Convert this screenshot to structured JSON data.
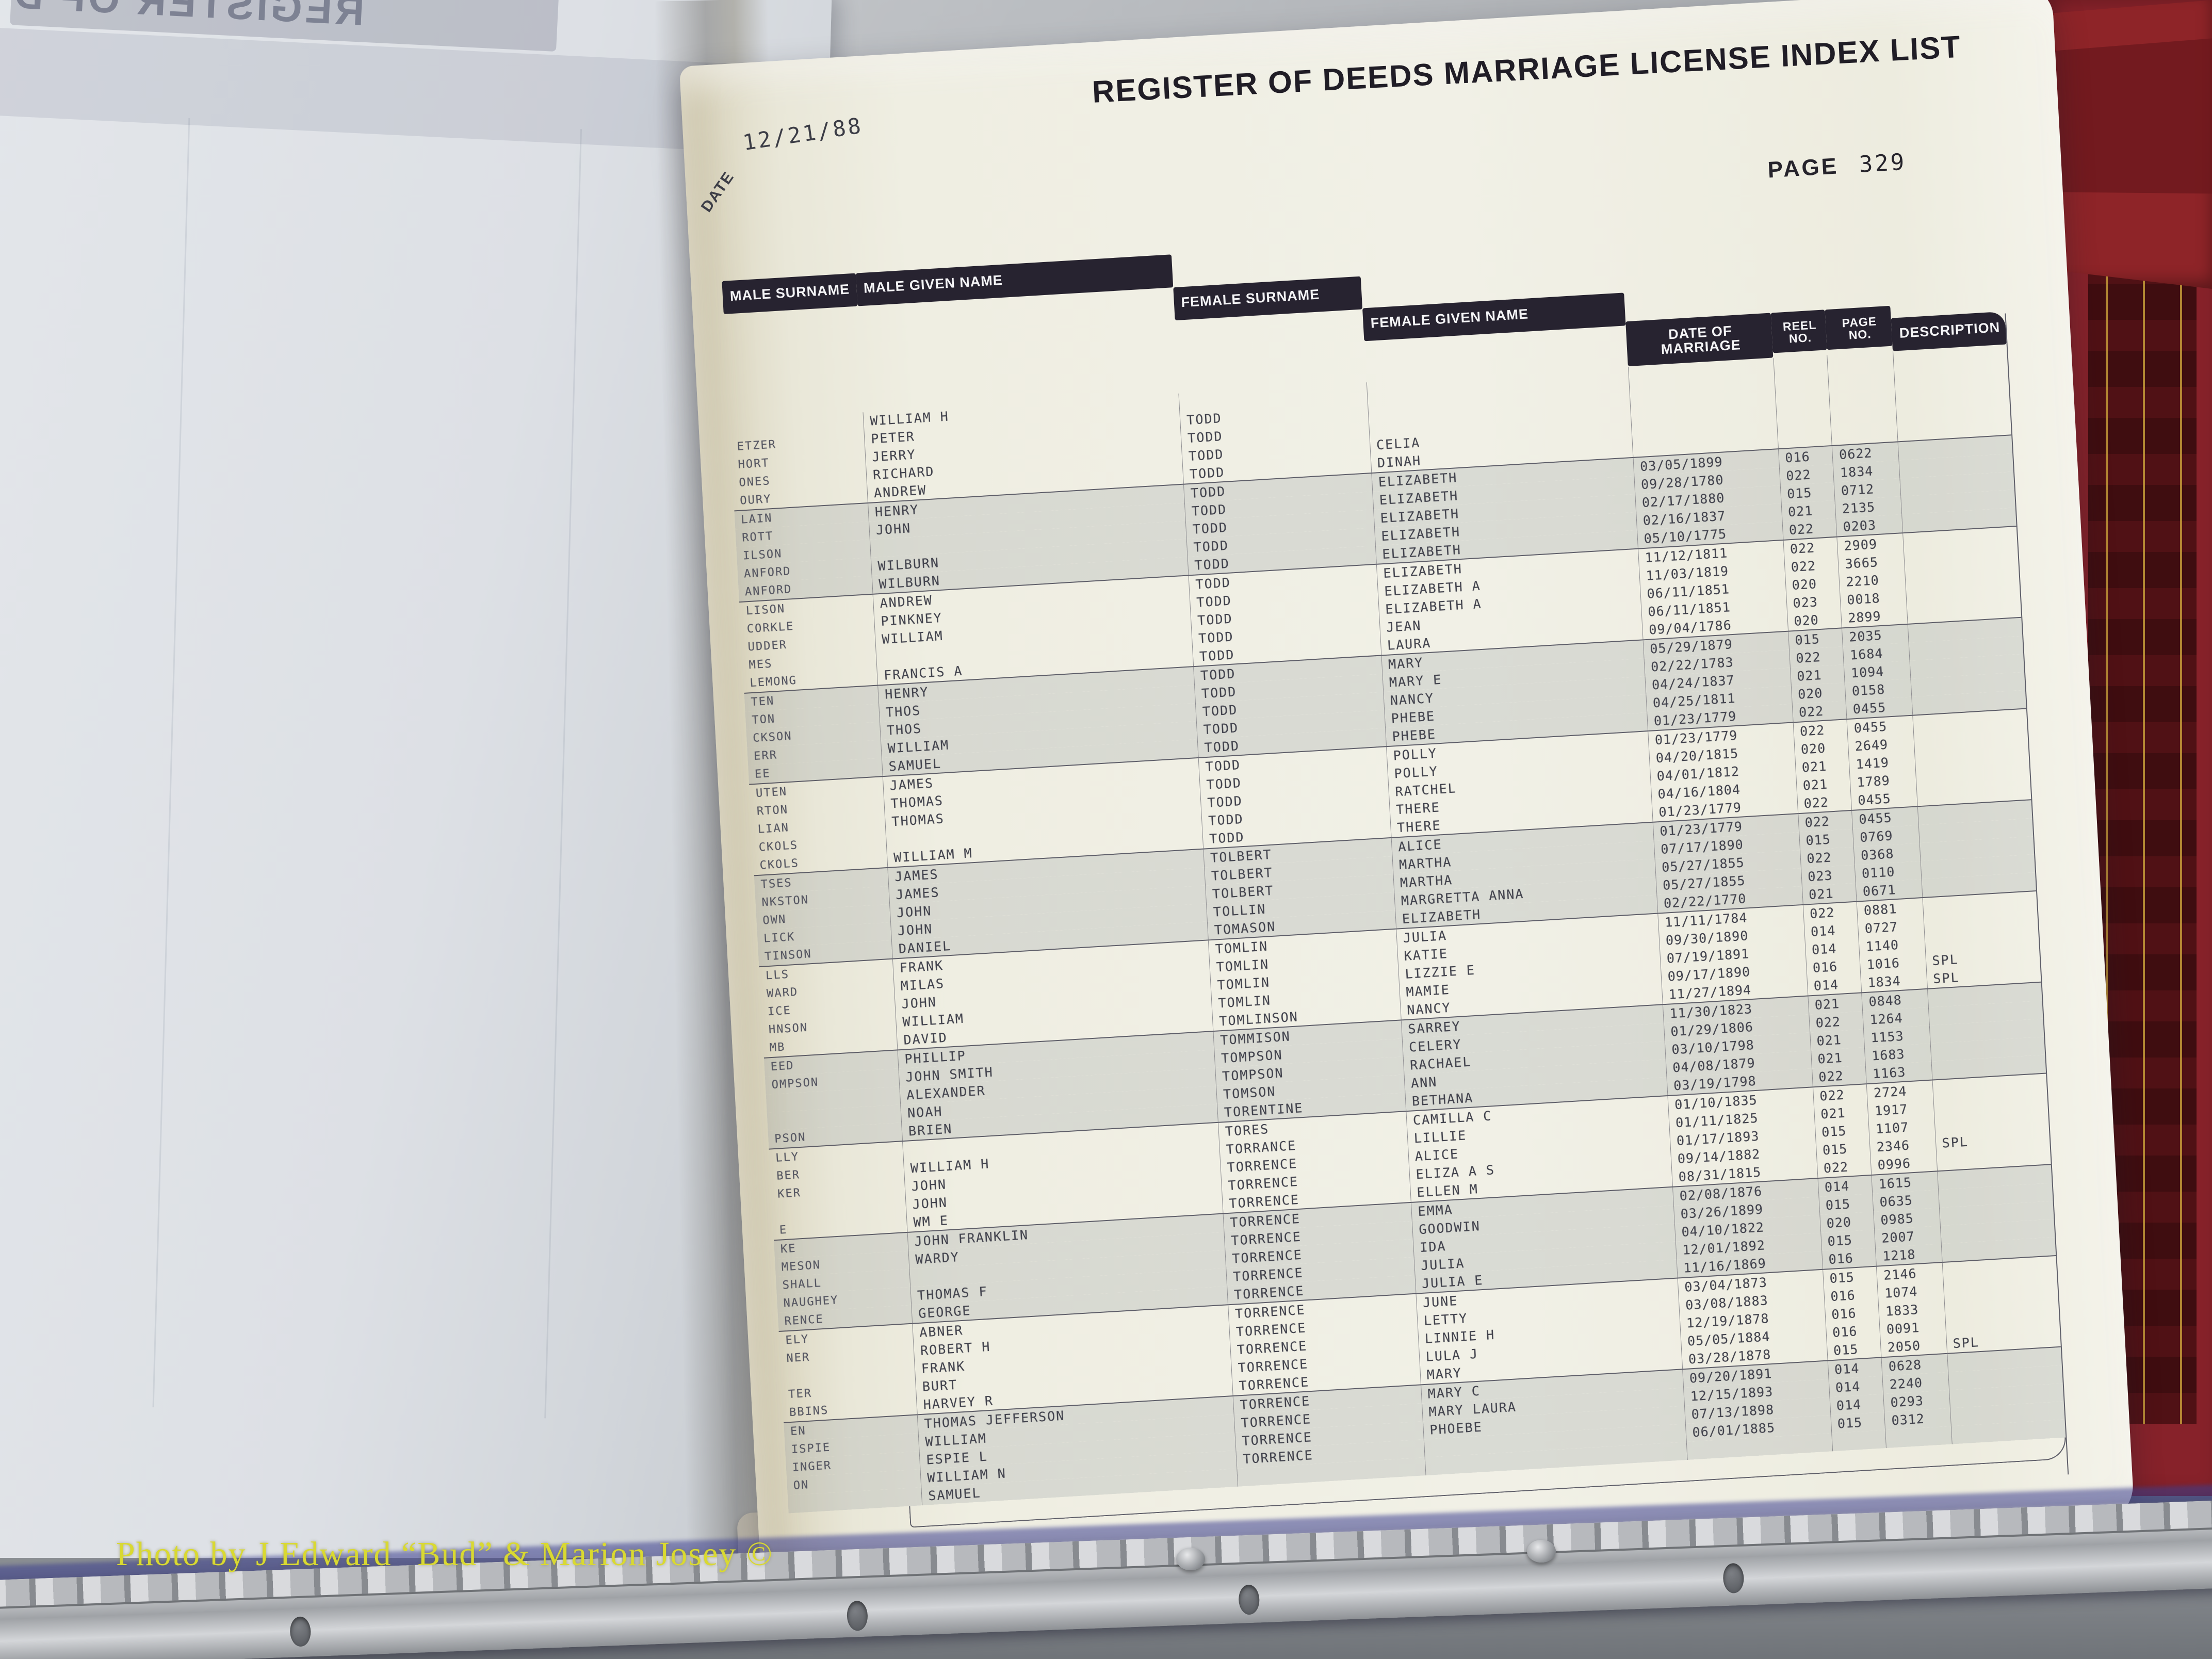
{
  "photo": {
    "watermark": "Photo by J Edward “Bud” & Marion Josey ©"
  },
  "left_page": {
    "ghost_header": "REGISTER OF D"
  },
  "page": {
    "stamp_date": "12/21/88",
    "date_label": "DATE",
    "title": "REGISTER OF DEEDS MARRIAGE LICENSE INDEX LIST",
    "page_label": "PAGE",
    "page_number": "329",
    "columns": [
      "MALE SURNAME",
      "MALE GIVEN NAME",
      "FEMALE SURNAME",
      "FEMALE GIVEN NAME",
      "DATE OF\nMARRIAGE",
      "REEL\nNO.",
      "PAGE\nNO.",
      "DESCRIPTION"
    ],
    "rows": [
      {
        "male_surname": "",
        "male_given": "WILLIAM H",
        "female_surname": "",
        "female_given": "",
        "date": "",
        "reel": "",
        "page": "",
        "description": ""
      },
      {
        "male_surname": "ETZER",
        "male_given": "PETER",
        "female_surname": "TODD",
        "female_given": "",
        "date": "",
        "reel": "",
        "page": "",
        "description": ""
      },
      {
        "male_surname": "HORT",
        "male_given": "JERRY",
        "female_surname": "TODD",
        "female_given": "",
        "date": "",
        "reel": "",
        "page": "",
        "description": ""
      },
      {
        "male_surname": "ONES",
        "male_given": "RICHARD",
        "female_surname": "TODD",
        "female_given": "CELIA",
        "date": "",
        "reel": "",
        "page": "",
        "description": ""
      },
      {
        "male_surname": "OURY",
        "male_given": "ANDREW",
        "female_surname": "TODD",
        "female_given": "DINAH",
        "date": "",
        "reel": "",
        "page": "",
        "description": ""
      },
      {
        "male_surname": "LAIN",
        "male_given": "HENRY",
        "female_surname": "TODD",
        "female_given": "ELIZABETH",
        "date": "03/05/1899",
        "reel": "016",
        "page": "0622",
        "description": ""
      },
      {
        "male_surname": "ROTT",
        "male_given": "JOHN",
        "female_surname": "TODD",
        "female_given": "ELIZABETH",
        "date": "09/28/1780",
        "reel": "022",
        "page": "1834",
        "description": ""
      },
      {
        "male_surname": "ILSON",
        "male_given": "",
        "female_surname": "TODD",
        "female_given": "ELIZABETH",
        "date": "02/17/1880",
        "reel": "015",
        "page": "0712",
        "description": ""
      },
      {
        "male_surname": "ANFORD",
        "male_given": "WILBURN",
        "female_surname": "TODD",
        "female_given": "ELIZABETH",
        "date": "02/16/1837",
        "reel": "021",
        "page": "2135",
        "description": ""
      },
      {
        "male_surname": "ANFORD",
        "male_given": "WILBURN",
        "female_surname": "TODD",
        "female_given": "ELIZABETH",
        "date": "05/10/1775",
        "reel": "022",
        "page": "0203",
        "description": ""
      },
      {
        "male_surname": "LISON",
        "male_given": "ANDREW",
        "female_surname": "TODD",
        "female_given": "ELIZABETH",
        "date": "11/12/1811",
        "reel": "022",
        "page": "2909",
        "description": ""
      },
      {
        "male_surname": "CORKLE",
        "male_given": "PINKNEY",
        "female_surname": "TODD",
        "female_given": "ELIZABETH A",
        "date": "11/03/1819",
        "reel": "022",
        "page": "3665",
        "description": ""
      },
      {
        "male_surname": "UDDER",
        "male_given": "WILLIAM",
        "female_surname": "TODD",
        "female_given": "ELIZABETH A",
        "date": "06/11/1851",
        "reel": "020",
        "page": "2210",
        "description": ""
      },
      {
        "male_surname": "MES",
        "male_given": "",
        "female_surname": "TODD",
        "female_given": "JEAN",
        "date": "06/11/1851",
        "reel": "023",
        "page": "0018",
        "description": ""
      },
      {
        "male_surname": "LEMONG",
        "male_given": "FRANCIS A",
        "female_surname": "TODD",
        "female_given": "LAURA",
        "date": "09/04/1786",
        "reel": "020",
        "page": "2899",
        "description": ""
      },
      {
        "male_surname": "TEN",
        "male_given": "HENRY",
        "female_surname": "TODD",
        "female_given": "MARY",
        "date": "05/29/1879",
        "reel": "015",
        "page": "2035",
        "description": ""
      },
      {
        "male_surname": "TON",
        "male_given": "THOS",
        "female_surname": "TODD",
        "female_given": "MARY E",
        "date": "02/22/1783",
        "reel": "022",
        "page": "1684",
        "description": ""
      },
      {
        "male_surname": "CKSON",
        "male_given": "THOS",
        "female_surname": "TODD",
        "female_given": "NANCY",
        "date": "04/24/1837",
        "reel": "021",
        "page": "1094",
        "description": ""
      },
      {
        "male_surname": "ERR",
        "male_given": "WILLIAM",
        "female_surname": "TODD",
        "female_given": "PHEBE",
        "date": "04/25/1811",
        "reel": "020",
        "page": "0158",
        "description": ""
      },
      {
        "male_surname": "EE",
        "male_given": "SAMUEL",
        "female_surname": "TODD",
        "female_given": "PHEBE",
        "date": "01/23/1779",
        "reel": "022",
        "page": "0455",
        "description": ""
      },
      {
        "male_surname": "UTEN",
        "male_given": "JAMES",
        "female_surname": "TODD",
        "female_given": "POLLY",
        "date": "01/23/1779",
        "reel": "022",
        "page": "0455",
        "description": ""
      },
      {
        "male_surname": "RTON",
        "male_given": "THOMAS",
        "female_surname": "TODD",
        "female_given": "POLLY",
        "date": "04/20/1815",
        "reel": "020",
        "page": "2649",
        "description": ""
      },
      {
        "male_surname": "LIAN",
        "male_given": "THOMAS",
        "female_surname": "TODD",
        "female_given": "RATCHEL",
        "date": "04/01/1812",
        "reel": "021",
        "page": "1419",
        "description": ""
      },
      {
        "male_surname": "CKOLS",
        "male_given": "",
        "female_surname": "TODD",
        "female_given": "THERE",
        "date": "04/16/1804",
        "reel": "021",
        "page": "1789",
        "description": ""
      },
      {
        "male_surname": "CKOLS",
        "male_given": "WILLIAM M",
        "female_surname": "TODD",
        "female_given": "THERE",
        "date": "01/23/1779",
        "reel": "022",
        "page": "0455",
        "description": ""
      },
      {
        "male_surname": "TSES",
        "male_given": "JAMES",
        "female_surname": "TOLBERT",
        "female_given": "ALICE",
        "date": "01/23/1779",
        "reel": "022",
        "page": "0455",
        "description": ""
      },
      {
        "male_surname": "NKSTON",
        "male_given": "JAMES",
        "female_surname": "TOLBERT",
        "female_given": "MARTHA",
        "date": "07/17/1890",
        "reel": "015",
        "page": "0769",
        "description": ""
      },
      {
        "male_surname": "OWN",
        "male_given": "JOHN",
        "female_surname": "TOLBERT",
        "female_given": "MARTHA",
        "date": "05/27/1855",
        "reel": "022",
        "page": "0368",
        "description": ""
      },
      {
        "male_surname": "LICK",
        "male_given": "JOHN",
        "female_surname": "TOLLIN",
        "female_given": "MARGRETTA ANNA",
        "date": "05/27/1855",
        "reel": "023",
        "page": "0110",
        "description": ""
      },
      {
        "male_surname": "TINSON",
        "male_given": "DANIEL",
        "female_surname": "TOMASON",
        "female_given": "ELIZABETH",
        "date": "02/22/1770",
        "reel": "021",
        "page": "0671",
        "description": ""
      },
      {
        "male_surname": "LLS",
        "male_given": "FRANK",
        "female_surname": "TOMLIN",
        "female_given": "JULIA",
        "date": "11/11/1784",
        "reel": "022",
        "page": "0881",
        "description": ""
      },
      {
        "male_surname": "WARD",
        "male_given": "MILAS",
        "female_surname": "TOMLIN",
        "female_given": "KATIE",
        "date": "09/30/1890",
        "reel": "014",
        "page": "0727",
        "description": ""
      },
      {
        "male_surname": "ICE",
        "male_given": "JOHN",
        "female_surname": "TOMLIN",
        "female_given": "LIZZIE E",
        "date": "07/19/1891",
        "reel": "014",
        "page": "1140",
        "description": ""
      },
      {
        "male_surname": "HNSON",
        "male_given": "WILLIAM",
        "female_surname": "TOMLIN",
        "female_given": "MAMIE",
        "date": "09/17/1890",
        "reel": "016",
        "page": "1016",
        "description": "SPL"
      },
      {
        "male_surname": "MB",
        "male_given": "DAVID",
        "female_surname": "TOMLINSON",
        "female_given": "NANCY",
        "date": "11/27/1894",
        "reel": "014",
        "page": "1834",
        "description": "SPL"
      },
      {
        "male_surname": "EED",
        "male_given": "PHILLIP",
        "female_surname": "TOMMISON",
        "female_given": "SARREY",
        "date": "11/30/1823",
        "reel": "021",
        "page": "0848",
        "description": ""
      },
      {
        "male_surname": "OMPSON",
        "male_given": "JOHN SMITH",
        "female_surname": "TOMPSON",
        "female_given": "CELERY",
        "date": "01/29/1806",
        "reel": "022",
        "page": "1264",
        "description": ""
      },
      {
        "male_surname": "",
        "male_given": "ALEXANDER",
        "female_surname": "TOMPSON",
        "female_given": "RACHAEL",
        "date": "03/10/1798",
        "reel": "021",
        "page": "1153",
        "description": ""
      },
      {
        "male_surname": "",
        "male_given": "NOAH",
        "female_surname": "TOMSON",
        "female_given": "ANN",
        "date": "04/08/1879",
        "reel": "021",
        "page": "1683",
        "description": ""
      },
      {
        "male_surname": "PSON",
        "male_given": "BRIEN",
        "female_surname": "TORENTINE",
        "female_given": "BETHANA",
        "date": "03/19/1798",
        "reel": "022",
        "page": "1163",
        "description": ""
      },
      {
        "male_surname": "LLY",
        "male_given": "",
        "female_surname": "TORES",
        "female_given": "CAMILLA C",
        "date": "01/10/1835",
        "reel": "022",
        "page": "2724",
        "description": ""
      },
      {
        "male_surname": "BER",
        "male_given": "WILLIAM H",
        "female_surname": "TORRANCE",
        "female_given": "LILLIE",
        "date": "01/11/1825",
        "reel": "021",
        "page": "1917",
        "description": ""
      },
      {
        "male_surname": "KER",
        "male_given": "JOHN",
        "female_surname": "TORRENCE",
        "female_given": "ALICE",
        "date": "01/17/1893",
        "reel": "015",
        "page": "1107",
        "description": ""
      },
      {
        "male_surname": "",
        "male_given": "JOHN",
        "female_surname": "TORRENCE",
        "female_given": "ELIZA A S",
        "date": "09/14/1882",
        "reel": "015",
        "page": "2346",
        "description": "SPL"
      },
      {
        "male_surname": "E",
        "male_given": "WM E",
        "female_surname": "TORRENCE",
        "female_given": "ELLEN M",
        "date": "08/31/1815",
        "reel": "022",
        "page": "0996",
        "description": ""
      },
      {
        "male_surname": "KE",
        "male_given": "JOHN FRANKLIN",
        "female_surname": "TORRENCE",
        "female_given": "EMMA",
        "date": "02/08/1876",
        "reel": "014",
        "page": "1615",
        "description": ""
      },
      {
        "male_surname": "MESON",
        "male_given": "WARDY",
        "female_surname": "TORRENCE",
        "female_given": "GOODWIN",
        "date": "03/26/1899",
        "reel": "015",
        "page": "0635",
        "description": ""
      },
      {
        "male_surname": "SHALL",
        "male_given": "",
        "female_surname": "TORRENCE",
        "female_given": "IDA",
        "date": "04/10/1822",
        "reel": "020",
        "page": "0985",
        "description": ""
      },
      {
        "male_surname": "NAUGHEY",
        "male_given": "THOMAS F",
        "female_surname": "TORRENCE",
        "female_given": "JULIA",
        "date": "12/01/1892",
        "reel": "015",
        "page": "2007",
        "description": ""
      },
      {
        "male_surname": "RENCE",
        "male_given": "GEORGE",
        "female_surname": "TORRENCE",
        "female_given": "JULIA E",
        "date": "11/16/1869",
        "reel": "016",
        "page": "1218",
        "description": ""
      },
      {
        "male_surname": "ELY",
        "male_given": "ABNER",
        "female_surname": "TORRENCE",
        "female_given": "JUNE",
        "date": "03/04/1873",
        "reel": "015",
        "page": "2146",
        "description": ""
      },
      {
        "male_surname": "NER",
        "male_given": "ROBERT H",
        "female_surname": "TORRENCE",
        "female_given": "LETTY",
        "date": "03/08/1883",
        "reel": "016",
        "page": "1074",
        "description": ""
      },
      {
        "male_surname": "",
        "male_given": "FRANK",
        "female_surname": "TORRENCE",
        "female_given": "LINNIE H",
        "date": "12/19/1878",
        "reel": "016",
        "page": "1833",
        "description": ""
      },
      {
        "male_surname": "TER",
        "male_given": "BURT",
        "female_surname": "TORRENCE",
        "female_given": "LULA J",
        "date": "05/05/1884",
        "reel": "016",
        "page": "0091",
        "description": ""
      },
      {
        "male_surname": "BBINS",
        "male_given": "HARVEY R",
        "female_surname": "TORRENCE",
        "female_given": "MARY",
        "date": "03/28/1878",
        "reel": "015",
        "page": "2050",
        "description": "SPL"
      },
      {
        "male_surname": "EN",
        "male_given": "THOMAS JEFFERSON",
        "female_surname": "TORRENCE",
        "female_given": "MARY C",
        "date": "09/20/1891",
        "reel": "014",
        "page": "0628",
        "description": ""
      },
      {
        "male_surname": "ISPIE",
        "male_given": "WILLIAM",
        "female_surname": "TORRENCE",
        "female_given": "MARY LAURA",
        "date": "12/15/1893",
        "reel": "014",
        "page": "2240",
        "description": ""
      },
      {
        "male_surname": "INGER",
        "male_given": "ESPIE L",
        "female_surname": "TORRENCE",
        "female_given": "PHOEBE",
        "date": "07/13/1898",
        "reel": "014",
        "page": "0293",
        "description": ""
      },
      {
        "male_surname": "ON",
        "male_given": "WILLIAM N",
        "female_surname": "TORRENCE",
        "female_given": "",
        "date": "06/01/1885",
        "reel": "015",
        "page": "0312",
        "description": ""
      },
      {
        "male_surname": "",
        "male_given": "SAMUEL",
        "female_surname": "",
        "female_given": "",
        "date": "",
        "reel": "",
        "page": "",
        "description": ""
      }
    ]
  }
}
